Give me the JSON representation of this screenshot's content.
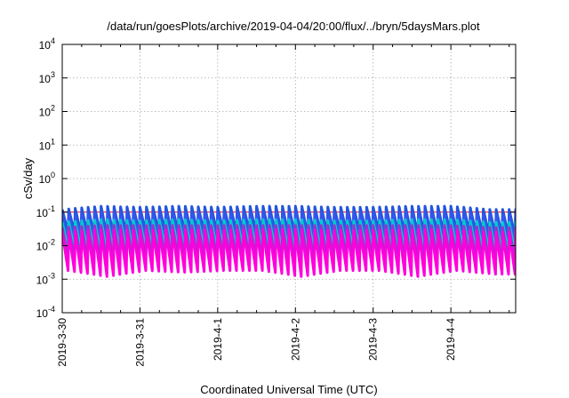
{
  "chart_data": {
    "type": "line",
    "title": "/data/run/goesPlots/archive/2019-04-04/20:00/flux/../bryn/5daysMars.plot",
    "xlabel": "Coordinated Universal Time (UTC)",
    "ylabel": "cSv/day",
    "y_scale": "log",
    "ylim": [
      0.0001,
      10000
    ],
    "y_ticks": [
      {
        "value": 0.0001,
        "base": "10",
        "exp": "-4"
      },
      {
        "value": 0.001,
        "base": "10",
        "exp": "-3"
      },
      {
        "value": 0.01,
        "base": "10",
        "exp": "-2"
      },
      {
        "value": 0.1,
        "base": "10",
        "exp": "-1"
      },
      {
        "value": 1,
        "base": "10",
        "exp": "0"
      },
      {
        "value": 10,
        "base": "10",
        "exp": "1"
      },
      {
        "value": 100,
        "base": "10",
        "exp": "2"
      },
      {
        "value": 1000,
        "base": "10",
        "exp": "3"
      },
      {
        "value": 10000,
        "base": "10",
        "exp": "4"
      }
    ],
    "x_unit": "day",
    "xlim": [
      "2019-03-30",
      "2019-04-04T20:00"
    ],
    "x_ticks": [
      "2019-3-30",
      "2019-3-31",
      "2019-4-1",
      "2019-4-2",
      "2019-4-3",
      "2019-4-4"
    ],
    "grid": true,
    "sawtooth_period_hours": 2,
    "x": [
      "2019-03-30T00:00",
      "2019-03-30T12:00",
      "2019-03-31T00:00",
      "2019-03-31T12:00",
      "2019-04-01T00:00",
      "2019-04-01T12:00",
      "2019-04-02T00:00",
      "2019-04-02T12:00",
      "2019-04-03T00:00",
      "2019-04-03T12:00",
      "2019-04-04T00:00",
      "2019-04-04T12:00"
    ],
    "series": [
      {
        "color": "#ff0000",
        "peak": [
          0.1,
          0.1,
          0.1,
          0.1,
          0.1,
          0.1,
          0.1,
          0.1,
          0.1,
          0.1,
          0.1,
          0.1
        ],
        "trough": [
          0.1,
          0.1,
          0.1,
          0.1,
          0.1,
          0.1,
          0.1,
          0.1,
          0.1,
          0.1,
          0.1,
          0.1
        ]
      },
      {
        "color": "#2255dd",
        "peak": [
          0.12,
          0.15,
          0.14,
          0.15,
          0.14,
          0.15,
          0.15,
          0.14,
          0.14,
          0.15,
          0.15,
          0.12
        ],
        "trough": [
          0.025,
          0.02,
          0.025,
          0.025,
          0.025,
          0.025,
          0.02,
          0.025,
          0.025,
          0.02,
          0.025,
          0.02
        ]
      },
      {
        "color": "#3355ee",
        "peak": [
          0.08,
          0.1,
          0.095,
          0.1,
          0.095,
          0.1,
          0.1,
          0.095,
          0.095,
          0.1,
          0.1,
          0.08
        ],
        "trough": [
          0.015,
          0.012,
          0.015,
          0.015,
          0.015,
          0.015,
          0.012,
          0.015,
          0.015,
          0.012,
          0.015,
          0.012
        ]
      },
      {
        "color": "#00cccc",
        "peak": [
          0.05,
          0.06,
          0.055,
          0.06,
          0.055,
          0.06,
          0.06,
          0.055,
          0.055,
          0.06,
          0.06,
          0.05
        ],
        "trough": [
          0.008,
          0.006,
          0.008,
          0.008,
          0.008,
          0.008,
          0.006,
          0.008,
          0.008,
          0.006,
          0.008,
          0.006
        ]
      },
      {
        "color": "#9933cc",
        "peak": [
          0.035,
          0.04,
          0.04,
          0.04,
          0.04,
          0.04,
          0.04,
          0.04,
          0.04,
          0.04,
          0.04,
          0.035
        ],
        "trough": [
          0.004,
          0.003,
          0.004,
          0.004,
          0.004,
          0.004,
          0.003,
          0.004,
          0.004,
          0.003,
          0.004,
          0.003
        ]
      },
      {
        "color": "#ff00dd",
        "peak": [
          0.025,
          0.03,
          0.028,
          0.03,
          0.028,
          0.03,
          0.03,
          0.028,
          0.028,
          0.03,
          0.03,
          0.025
        ],
        "trough": [
          0.0018,
          0.0012,
          0.0018,
          0.0016,
          0.0018,
          0.0018,
          0.0012,
          0.0018,
          0.0018,
          0.0012,
          0.0018,
          0.0014
        ]
      }
    ]
  }
}
